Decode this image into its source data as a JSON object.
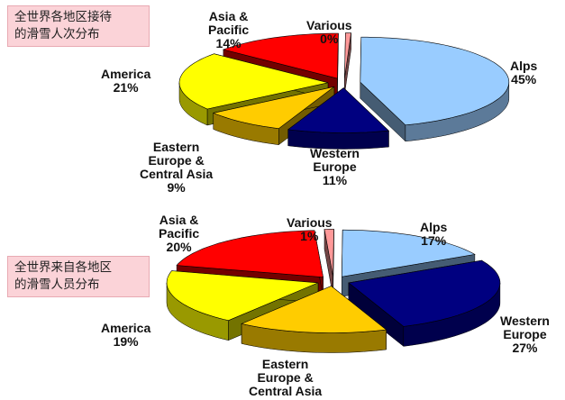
{
  "chart_data": [
    {
      "type": "pie",
      "title_lines": [
        "全世界各地区接待",
        "的滑雪人次分布"
      ],
      "categories": [
        "Alps",
        "Western Europe",
        "Eastern Europe & Central Asia",
        "America",
        "Asia & Pacific",
        "Various"
      ],
      "label_lines": [
        [
          "Alps"
        ],
        [
          "Western",
          "Europe"
        ],
        [
          "Eastern",
          "Europe &",
          "Central Asia"
        ],
        [
          "America"
        ],
        [
          "Asia &",
          "Pacific"
        ],
        [
          "Various"
        ]
      ],
      "values": [
        45,
        11,
        9,
        21,
        14,
        0
      ],
      "value_labels": [
        "45%",
        "11%",
        "9%",
        "21%",
        "14%",
        "0%"
      ],
      "colors": [
        "#99ccff",
        "#000080",
        "#ffcc00",
        "#ffff00",
        "#ff0000",
        "#ff9999"
      ]
    },
    {
      "type": "pie",
      "title_lines": [
        "全世界来自各地区",
        "的滑雪人员分布"
      ],
      "categories": [
        "Alps",
        "Western Europe",
        "Eastern Europe & Central Asia",
        "America",
        "Asia & Pacific",
        "Various"
      ],
      "label_lines": [
        [
          "Alps"
        ],
        [
          "Western",
          "Europe"
        ],
        [
          "Eastern",
          "Europe &",
          "Central Asia"
        ],
        [
          "America"
        ],
        [
          "Asia &",
          "Pacific"
        ],
        [
          "Various"
        ]
      ],
      "values": [
        17,
        27,
        16,
        19,
        20,
        1
      ],
      "value_labels": [
        "17%",
        "27%",
        "",
        "19%",
        "20%",
        "1%"
      ],
      "colors": [
        "#99ccff",
        "#000080",
        "#ffcc00",
        "#ffff00",
        "#ff0000",
        "#ff9999"
      ]
    }
  ]
}
